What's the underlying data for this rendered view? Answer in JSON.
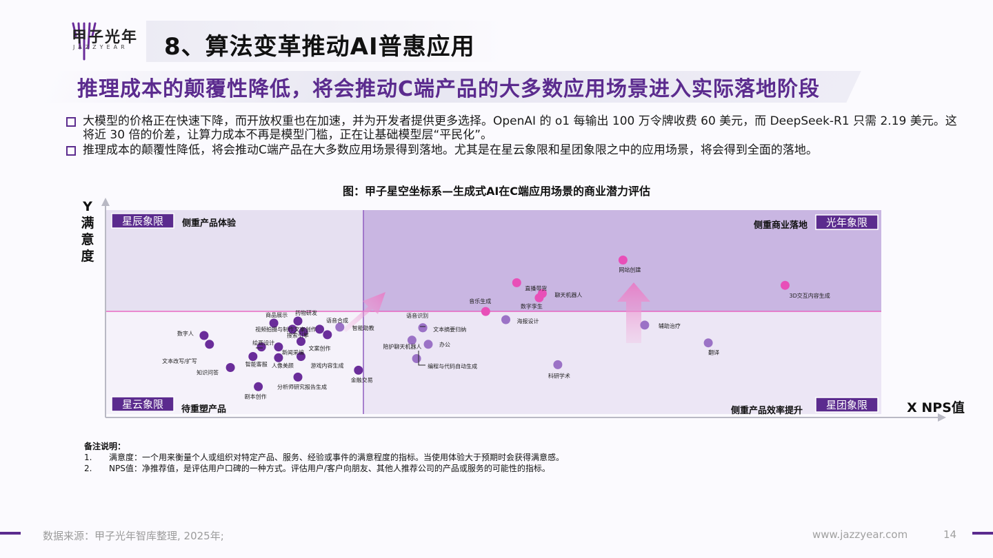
{
  "header": {
    "logo_cn": "甲子光年",
    "logo_en": "JAZZYEAR",
    "title": "8、算法变革推动AI普惠应用",
    "subtitle": "推理成本的颠覆性降低，将会推动C端产品的大多数应用场景进入实际落地阶段"
  },
  "bullets": [
    "大模型的价格正在快速下降，而开放权重也在加速，并为开发者提供更多选择。OpenAI 的 o1 每输出 100 万令牌收费 60 美元，而 DeepSeek-R1 只需 2.19 美元。这将近 30 倍的价差，让算力成本不再是模型门槛，正在让基础模型层“平民化”。",
    "推理成本的颠覆性降低，将会推动C端产品在大多数应用场景得到落地。尤其是在星云象限和星团象限之中的应用场景，将会得到全面的落地。"
  ],
  "chart_data": {
    "type": "scatter",
    "title": "图：甲子星空坐标系—生成式AI在C端应用场景的商业潜力评估",
    "ylabel": "Y满意度",
    "xlabel": "X NPS值",
    "quadrants": {
      "top_left": {
        "tag": "星辰象限",
        "desc": "侧重产品体验"
      },
      "top_right": {
        "tag": "光年象限",
        "desc": "侧重商业落地"
      },
      "bottom_left": {
        "tag": "星云象限",
        "desc": "待重塑产品"
      },
      "bottom_right": {
        "tag": "星团象限",
        "desc": "侧重产品效率提升"
      }
    },
    "colors": {
      "dark": "#6a2d9a",
      "mid": "#9b72c6",
      "pink": "#e84fb8",
      "accent": "#5b2b8e"
    },
    "points": [
      {
        "label": "数字人",
        "x": 12.7,
        "y": 38.5,
        "c": "dark"
      },
      {
        "label": "文本改写/扩写",
        "x": 13.4,
        "y": 34.2,
        "c": "dark"
      },
      {
        "label": "知识问答",
        "x": 16.1,
        "y": 22.8,
        "c": "dark"
      },
      {
        "label": "智能客服",
        "x": 19.0,
        "y": 28.2,
        "c": "dark"
      },
      {
        "label": "绘画设计",
        "x": 20.1,
        "y": 32.9,
        "c": "dark"
      },
      {
        "label": "剧本创作",
        "x": 19.7,
        "y": 13.4,
        "c": "dark"
      },
      {
        "label": "商品展示",
        "x": 21.7,
        "y": 44.6,
        "c": "dark"
      },
      {
        "label": "视频拍摄与制作",
        "x": 24.1,
        "y": 41.6,
        "c": "dark"
      },
      {
        "label": "新闻采编",
        "x": 22.3,
        "y": 32.9,
        "c": "dark"
      },
      {
        "label": "人像美颜",
        "x": 22.3,
        "y": 27.6,
        "c": "dark"
      },
      {
        "label": "药物研发",
        "x": 24.8,
        "y": 45.6,
        "c": "dark"
      },
      {
        "label": "搜索引擎",
        "x": 25.5,
        "y": 40.3,
        "c": "dark"
      },
      {
        "label": "文案创作",
        "x": 25.2,
        "y": 35.6,
        "c": "dark"
      },
      {
        "label": "游戏内容生成",
        "x": 25.2,
        "y": 28.2,
        "c": "dark"
      },
      {
        "label": "分析师研究报告生成",
        "x": 24.8,
        "y": 18.1,
        "c": "dark"
      },
      {
        "label": "语音合成",
        "x": 27.6,
        "y": 41.6,
        "c": "dark"
      },
      {
        "label": "文案创作2",
        "x": 28.6,
        "y": 38.9,
        "c": "dark"
      },
      {
        "label": "智能助教",
        "x": 30.2,
        "y": 42.6,
        "c": "mid"
      },
      {
        "label": "金融交易",
        "x": 32.6,
        "y": 21.5,
        "c": "dark"
      },
      {
        "label": "语音识别",
        "x": 40.9,
        "y": 42.3,
        "c": "mid"
      },
      {
        "label": "文本摘要归纳",
        "x": 40.9,
        "y": 42.3,
        "c": "mid"
      },
      {
        "label": "陪护聊天机器人",
        "x": 39.5,
        "y": 36.2,
        "c": "mid"
      },
      {
        "label": "办公",
        "x": 41.6,
        "y": 34.2,
        "c": "mid"
      },
      {
        "label": "编程与代码自动生成",
        "x": 40.1,
        "y": 27.2,
        "c": "mid"
      },
      {
        "label": "音乐生成",
        "x": 49.0,
        "y": 50.3,
        "c": "pink"
      },
      {
        "label": "直播带货",
        "x": 53.0,
        "y": 64.4,
        "c": "pink"
      },
      {
        "label": "聊天机器人",
        "x": 56.3,
        "y": 59.1,
        "c": "pink"
      },
      {
        "label": "数字孪生",
        "x": 55.9,
        "y": 57.0,
        "c": "pink"
      },
      {
        "label": "海报设计",
        "x": 51.6,
        "y": 46.3,
        "c": "mid"
      },
      {
        "label": "科研学术",
        "x": 58.3,
        "y": 24.2,
        "c": "mid"
      },
      {
        "label": "网站创建",
        "x": 66.7,
        "y": 75.5,
        "c": "pink"
      },
      {
        "label": "辅助治疗",
        "x": 69.5,
        "y": 43.6,
        "c": "mid"
      },
      {
        "label": "翻译",
        "x": 77.7,
        "y": 34.9,
        "c": "mid"
      },
      {
        "label": "3D交互内容生成",
        "x": 87.6,
        "y": 63.1,
        "c": "pink"
      }
    ]
  },
  "notes": {
    "heading": "备注说明：",
    "items": [
      {
        "n": "1.",
        "text": "满意度：一个用来衡量个人或组织对特定产品、服务、经验或事件的满意程度的指标。当使用体验大于预期时会获得满意感。"
      },
      {
        "n": "2.",
        "text": "NPS值：净推荐值，是评估用户口碑的一种方式。评估用户/客户向朋友、其他人推荐公司的产品或服务的可能性的指标。"
      }
    ]
  },
  "footer": {
    "source": "数据来源：甲子光年智库整理, 2025年;",
    "url": "www.jazzyear.com",
    "page": "14"
  }
}
